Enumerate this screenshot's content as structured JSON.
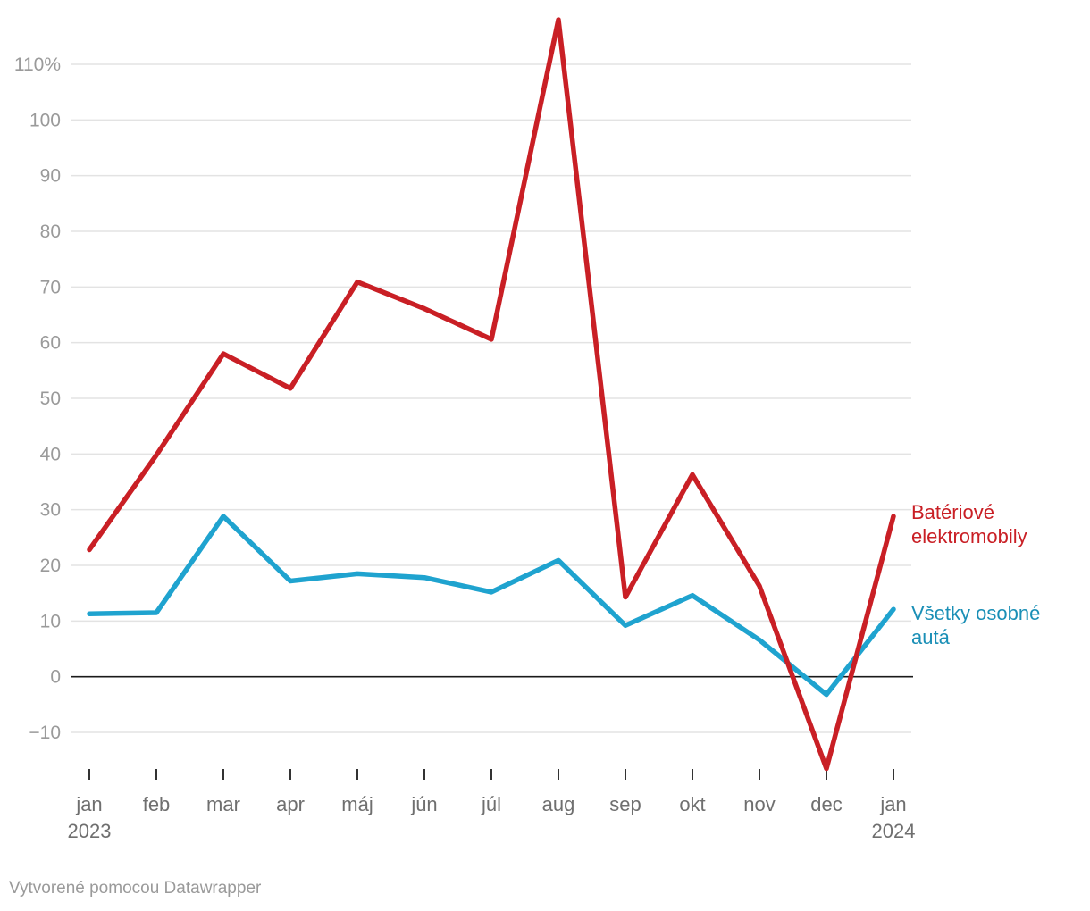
{
  "chart_data": {
    "type": "line",
    "title": "",
    "xlabel": "",
    "ylabel": "",
    "x": [
      "jan 2023",
      "feb",
      "mar",
      "apr",
      "máj",
      "jún",
      "júl",
      "aug",
      "sep",
      "okt",
      "nov",
      "dec",
      "jan 2024"
    ],
    "x_tick_labels": [
      {
        "line1": "jan",
        "line2": "2023"
      },
      {
        "line1": "feb",
        "line2": ""
      },
      {
        "line1": "mar",
        "line2": ""
      },
      {
        "line1": "apr",
        "line2": ""
      },
      {
        "line1": "máj",
        "line2": ""
      },
      {
        "line1": "jún",
        "line2": ""
      },
      {
        "line1": "júl",
        "line2": ""
      },
      {
        "line1": "aug",
        "line2": ""
      },
      {
        "line1": "sep",
        "line2": ""
      },
      {
        "line1": "okt",
        "line2": ""
      },
      {
        "line1": "nov",
        "line2": ""
      },
      {
        "line1": "dec",
        "line2": ""
      },
      {
        "line1": "jan",
        "line2": "2024"
      }
    ],
    "y_ticks": [
      110,
      100,
      90,
      80,
      70,
      60,
      50,
      40,
      30,
      20,
      10,
      0,
      -10
    ],
    "y_tick_labels": [
      "110%",
      "100",
      "90",
      "80",
      "70",
      "60",
      "50",
      "40",
      "30",
      "20",
      "10",
      "0",
      "−10"
    ],
    "ylim": [
      -17,
      118
    ],
    "grid": true,
    "zero_line": true,
    "series": [
      {
        "name_lines": [
          "Batériové",
          "elektromobily"
        ],
        "color": "#c91f25",
        "values": [
          22.8,
          39.8,
          58.0,
          51.8,
          70.9,
          66.1,
          60.6,
          118.0,
          14.3,
          36.3,
          16.3,
          -16.5,
          28.8
        ]
      },
      {
        "name_lines": [
          "Všetky osobné",
          "autá"
        ],
        "color": "#1fa3cf",
        "values": [
          11.3,
          11.5,
          28.8,
          17.2,
          18.5,
          17.8,
          15.2,
          20.9,
          9.2,
          14.6,
          6.6,
          -3.2,
          12.1
        ]
      }
    ],
    "label_colors": [
      "#c91f25",
      "#1a8fb6"
    ]
  },
  "footer": {
    "text": "Vytvorené pomocou Datawrapper"
  }
}
